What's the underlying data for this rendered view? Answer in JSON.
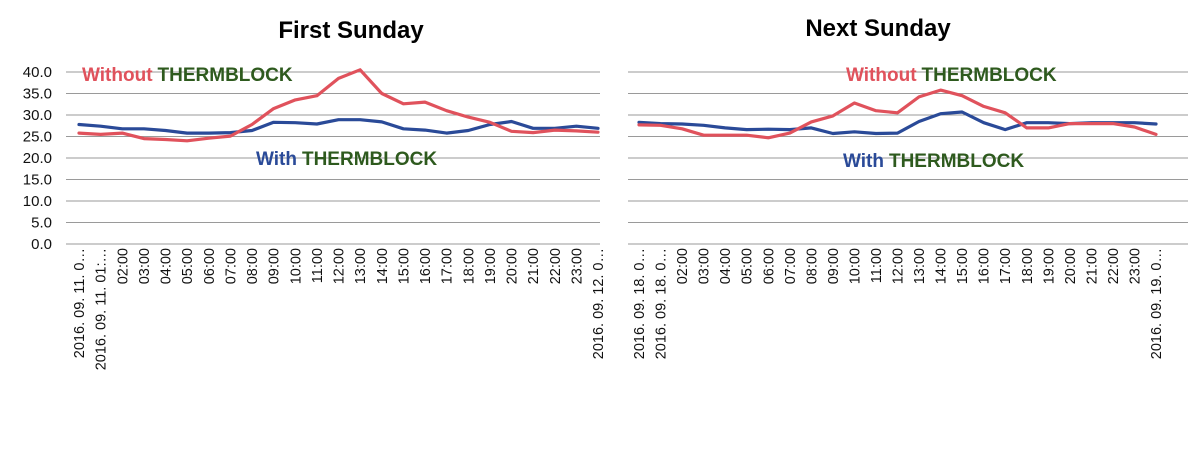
{
  "colors": {
    "without": "#e0525c",
    "with": "#2a4a98",
    "brand": "#2e5a1e",
    "grid": "#9a9a9a"
  },
  "chart_data": [
    {
      "type": "line",
      "title": "First Sunday",
      "y_ticks": [
        "40.0",
        "35.0",
        "30.0",
        "25.0",
        "20.0",
        "15.0",
        "10.0",
        "5.0",
        "0.0"
      ],
      "ylim": [
        0,
        40
      ],
      "grid": "horizontal",
      "categories": [
        "2016. 09. 11. 0…",
        "2016. 09. 11. 01:…",
        "02:00",
        "03:00",
        "04:00",
        "05:00",
        "06:00",
        "07:00",
        "08:00",
        "09:00",
        "10:00",
        "11:00",
        "12:00",
        "13:00",
        "14:00",
        "15:00",
        "16:00",
        "17:00",
        "18:00",
        "19:00",
        "20:00",
        "21:00",
        "22:00",
        "23:00",
        "2016. 09. 12. 0…"
      ],
      "series": [
        {
          "key": "without",
          "values": [
            25.8,
            25.5,
            25.8,
            24.5,
            24.3,
            24.0,
            24.6,
            25.1,
            27.8,
            31.5,
            33.5,
            34.5,
            38.5,
            40.5,
            35.0,
            32.6,
            33.0,
            31.0,
            29.5,
            28.3,
            26.2,
            25.9,
            26.5,
            26.3,
            26.0
          ]
        },
        {
          "key": "with",
          "values": [
            27.8,
            27.4,
            26.8,
            26.8,
            26.4,
            25.8,
            25.8,
            25.9,
            26.4,
            28.3,
            28.2,
            27.9,
            28.9,
            28.9,
            28.4,
            26.8,
            26.5,
            25.8,
            26.4,
            27.8,
            28.5,
            26.9,
            26.9,
            27.4,
            26.9
          ]
        }
      ],
      "annotations": [
        {
          "key": "without",
          "prefix": "Without",
          "brand": "THERMBLOCK"
        },
        {
          "key": "with",
          "prefix": "With",
          "brand": "THERMBLOCK"
        }
      ]
    },
    {
      "type": "line",
      "title": "Next Sunday",
      "ylim": [
        0,
        40
      ],
      "grid": "horizontal",
      "categories": [
        "2016. 09. 18. 0…",
        "2016. 09. 18. 0…",
        "02:00",
        "03:00",
        "04:00",
        "05:00",
        "06:00",
        "07:00",
        "08:00",
        "09:00",
        "10:00",
        "11:00",
        "12:00",
        "13:00",
        "14:00",
        "15:00",
        "16:00",
        "17:00",
        "18:00",
        "19:00",
        "20:00",
        "21:00",
        "22:00",
        "23:00",
        "2016. 09. 19. 0…"
      ],
      "series": [
        {
          "key": "without",
          "values": [
            27.7,
            27.6,
            26.8,
            25.3,
            25.3,
            25.3,
            24.7,
            25.8,
            28.4,
            29.8,
            32.8,
            31.0,
            30.5,
            34.2,
            35.8,
            34.5,
            32.0,
            30.5,
            27.0,
            27.0,
            28.0,
            28.0,
            28.0,
            27.2,
            25.5
          ]
        },
        {
          "key": "with",
          "values": [
            28.3,
            28.0,
            27.9,
            27.6,
            27.0,
            26.6,
            26.7,
            26.6,
            27.0,
            25.7,
            26.1,
            25.7,
            25.8,
            28.5,
            30.3,
            30.7,
            28.2,
            26.6,
            28.2,
            28.2,
            28.0,
            28.2,
            28.2,
            28.2,
            27.9
          ]
        }
      ],
      "annotations": [
        {
          "key": "without",
          "prefix": "Without",
          "brand": "THERMBLOCK"
        },
        {
          "key": "with",
          "prefix": "With",
          "brand": "THERMBLOCK"
        }
      ]
    }
  ]
}
